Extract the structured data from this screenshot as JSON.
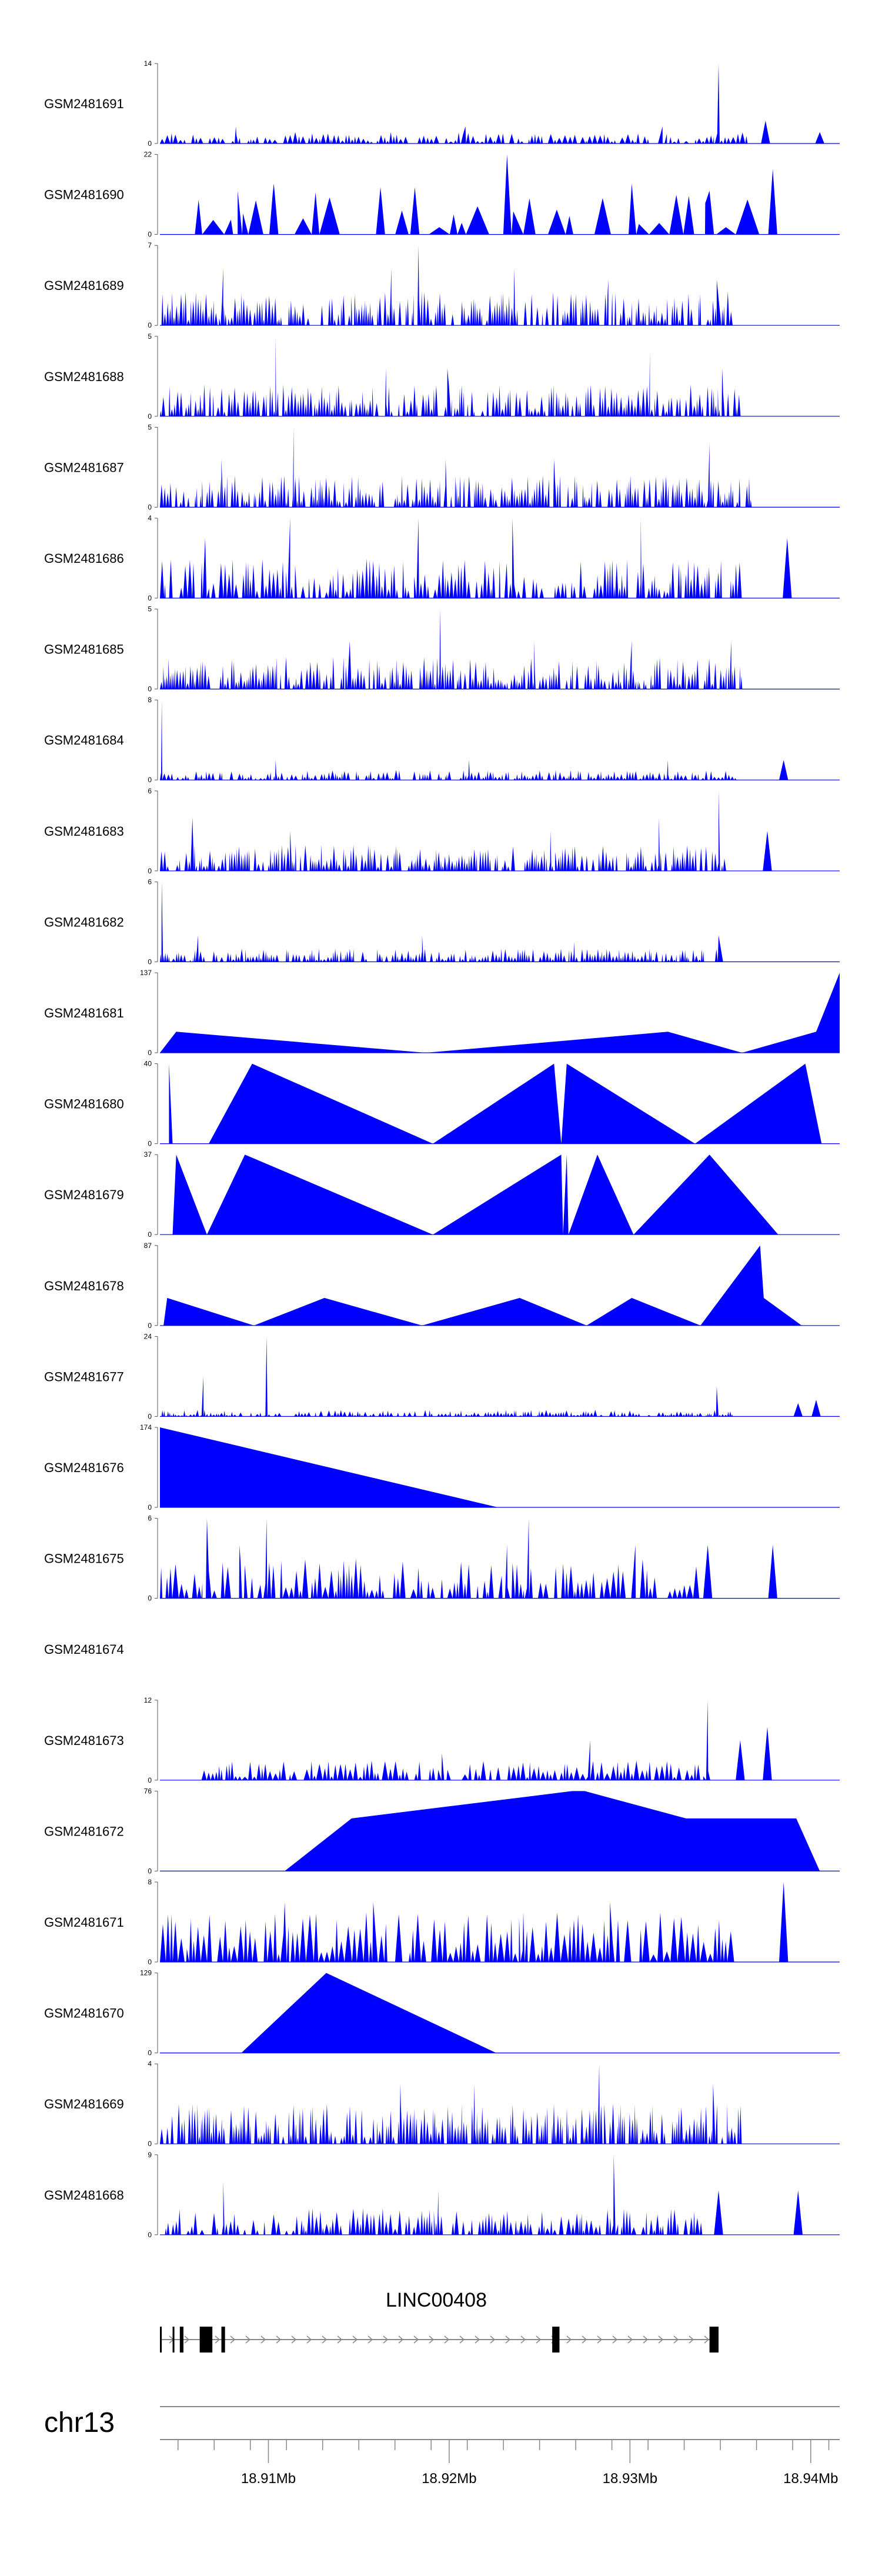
{
  "chart_data": {
    "type": "area",
    "title": "",
    "fill_color": "#0000ff",
    "x_unit": "Mb",
    "xlim": [
      18.904,
      18.9416
    ],
    "tracks": [
      {
        "name": "GSM2481691",
        "ymax": 14,
        "peaks": [
          [
            18.9349,
            14
          ],
          [
            18.9375,
            4
          ],
          [
            18.9318,
            3
          ],
          [
            18.9209,
            3
          ],
          [
            18.9082,
            3
          ],
          [
            18.9405,
            2
          ]
        ],
        "density": 0.8,
        "base": 2
      },
      {
        "name": "GSM2481690",
        "ymax": 22,
        "peaks": [
          [
            18.9232,
            22
          ],
          [
            18.9379,
            18
          ],
          [
            18.9103,
            14
          ],
          [
            18.9301,
            14
          ],
          [
            18.9162,
            13
          ],
          [
            18.9181,
            13
          ],
          [
            18.9344,
            12
          ],
          [
            18.9083,
            12
          ]
        ],
        "density": 0.2,
        "base": 12,
        "start": 18.9054
      },
      {
        "name": "GSM2481689",
        "ymax": 7,
        "peaks": [
          [
            18.9183,
            7
          ],
          [
            18.9075,
            5
          ],
          [
            18.9236,
            5
          ],
          [
            18.9348,
            4
          ],
          [
            18.9168,
            5
          ],
          [
            18.9288,
            4
          ]
        ],
        "density": 1.3,
        "base": 3
      },
      {
        "name": "GSM2481688",
        "ymax": 5,
        "peaks": [
          [
            18.9104,
            5
          ],
          [
            18.9311,
            4
          ],
          [
            18.9199,
            3
          ],
          [
            18.9351,
            3
          ],
          [
            18.9165,
            3
          ]
        ],
        "density": 1.2,
        "base": 2
      },
      {
        "name": "GSM2481687",
        "ymax": 5,
        "peaks": [
          [
            18.9114,
            5
          ],
          [
            18.9074,
            3
          ],
          [
            18.9258,
            3
          ],
          [
            18.9344,
            4
          ],
          [
            18.9198,
            3
          ]
        ],
        "density": 1.3,
        "base": 2
      },
      {
        "name": "GSM2481686",
        "ymax": 4,
        "peaks": [
          [
            18.9112,
            4
          ],
          [
            18.9183,
            4
          ],
          [
            18.9235,
            4
          ],
          [
            18.9306,
            4
          ],
          [
            18.9387,
            3
          ],
          [
            18.9065,
            3
          ]
        ],
        "density": 1.0,
        "base": 2
      },
      {
        "name": "GSM2481685",
        "ymax": 5,
        "peaks": [
          [
            18.9195,
            5
          ],
          [
            18.9145,
            3
          ],
          [
            18.9301,
            3
          ],
          [
            18.9247,
            3
          ],
          [
            18.9356,
            3
          ]
        ],
        "density": 1.3,
        "base": 2
      },
      {
        "name": "GSM2481684",
        "ymax": 8,
        "peaks": [
          [
            18.9041,
            8
          ],
          [
            18.9104,
            2
          ],
          [
            18.9211,
            2
          ],
          [
            18.9321,
            2
          ],
          [
            18.9385,
            2
          ]
        ],
        "density": 1.1,
        "base": 1
      },
      {
        "name": "GSM2481683",
        "ymax": 6,
        "peaks": [
          [
            18.9349,
            6
          ],
          [
            18.9316,
            4
          ],
          [
            18.9058,
            4
          ],
          [
            18.9112,
            3
          ],
          [
            18.9256,
            3
          ],
          [
            18.9376,
            3
          ]
        ],
        "density": 1.2,
        "base": 2
      },
      {
        "name": "GSM2481682",
        "ymax": 6,
        "peaks": [
          [
            18.9041,
            6
          ],
          [
            18.9061,
            2
          ],
          [
            18.9185,
            2
          ],
          [
            18.9349,
            2
          ],
          [
            18.9269,
            1.5
          ]
        ],
        "density": 1.2,
        "base": 1
      },
      {
        "name": "GSM2481681",
        "ymax": 137,
        "peaks": [
          [
            18.9049,
            36
          ],
          [
            18.9187,
            0
          ],
          [
            18.9321,
            36
          ],
          [
            18.9362,
            0
          ],
          [
            18.9403,
            36
          ],
          [
            18.9416,
            137
          ]
        ],
        "density": 0,
        "base": 0,
        "start": 18.904
      },
      {
        "name": "GSM2481680",
        "ymax": 40,
        "peaks": [
          [
            18.9045,
            40
          ],
          [
            18.9067,
            0
          ],
          [
            18.9091,
            40
          ],
          [
            18.9191,
            0
          ],
          [
            18.9258,
            40
          ],
          [
            18.9262,
            0
          ],
          [
            18.9265,
            40
          ],
          [
            18.9336,
            0
          ],
          [
            18.9397,
            40
          ],
          [
            18.9406,
            0
          ]
        ],
        "density": 0,
        "base": 0,
        "start": 18.9047
      },
      {
        "name": "GSM2481679",
        "ymax": 37,
        "peaks": [
          [
            18.9049,
            37
          ],
          [
            18.9066,
            0
          ],
          [
            18.9087,
            37
          ],
          [
            18.9191,
            0
          ],
          [
            18.9262,
            37
          ],
          [
            18.9263,
            0
          ],
          [
            18.9265,
            37
          ],
          [
            18.9266,
            0
          ],
          [
            18.9282,
            37
          ],
          [
            18.9302,
            0
          ],
          [
            18.9344,
            37
          ],
          [
            18.9382,
            0
          ]
        ],
        "density": 0,
        "base": 0,
        "start": 18.9047
      },
      {
        "name": "GSM2481678",
        "ymax": 87,
        "peaks": [
          [
            18.9044,
            30
          ],
          [
            18.9092,
            0
          ],
          [
            18.9131,
            30
          ],
          [
            18.9185,
            0
          ],
          [
            18.9239,
            30
          ],
          [
            18.9276,
            0
          ],
          [
            18.9301,
            30
          ],
          [
            18.9339,
            0
          ],
          [
            18.9372,
            87
          ],
          [
            18.9374,
            30
          ],
          [
            18.9395,
            0
          ]
        ],
        "density": 0,
        "base": 0,
        "start": 18.9042
      },
      {
        "name": "GSM2481677",
        "ymax": 24,
        "peaks": [
          [
            18.9099,
            24
          ],
          [
            18.9064,
            12
          ],
          [
            18.9348,
            9
          ],
          [
            18.9403,
            5
          ],
          [
            18.9393,
            4
          ]
        ],
        "density": 1.1,
        "base": 2
      },
      {
        "name": "GSM2481676",
        "ymax": 174,
        "peaks": [
          [
            18.904,
            174
          ],
          [
            18.9227,
            0
          ]
        ],
        "density": 0,
        "base": 0,
        "start": 18.904
      },
      {
        "name": "GSM2481675",
        "ymax": 6,
        "peaks": [
          [
            18.9066,
            6
          ],
          [
            18.9099,
            6
          ],
          [
            18.9244,
            6
          ],
          [
            18.9084,
            4
          ],
          [
            18.9303,
            4
          ],
          [
            18.9343,
            4
          ],
          [
            18.9379,
            4
          ],
          [
            18.9232,
            4
          ]
        ],
        "density": 0.7,
        "base": 3,
        "end": 18.9405
      },
      {
        "name": "GSM2481674",
        "ymax": 0,
        "peaks": [],
        "density": 0,
        "base": 0,
        "empty": true
      },
      {
        "name": "GSM2481673",
        "ymax": 12,
        "peaks": [
          [
            18.9343,
            12
          ],
          [
            18.9376,
            8
          ],
          [
            18.9361,
            6
          ],
          [
            18.9278,
            6
          ],
          [
            18.9196,
            4
          ]
        ],
        "density": 0.7,
        "base": 3,
        "start": 18.9063,
        "end": 18.9414
      },
      {
        "name": "GSM2481672",
        "ymax": 76,
        "peaks": [
          [
            18.9268,
            76
          ],
          [
            18.9275,
            76
          ],
          [
            18.9146,
            50
          ],
          [
            18.9331,
            50
          ],
          [
            18.9392,
            50
          ]
        ],
        "density": 0,
        "base": 0,
        "start": 18.9109,
        "end": 18.9405,
        "triangle": true
      },
      {
        "name": "GSM2481671",
        "ymax": 8,
        "peaks": [
          [
            18.9385,
            8
          ],
          [
            18.9109,
            6
          ],
          [
            18.9158,
            6
          ],
          [
            18.9289,
            6
          ],
          [
            18.9241,
            5
          ],
          [
            18.9057,
            4
          ]
        ],
        "density": 0.6,
        "base": 5
      },
      {
        "name": "GSM2481670",
        "ymax": 129,
        "peaks": [
          [
            18.9132,
            129
          ],
          [
            18.9226,
            0
          ]
        ],
        "density": 0,
        "base": 0,
        "start": 18.9085
      },
      {
        "name": "GSM2481669",
        "ymax": 4,
        "peaks": [
          [
            18.9283,
            4
          ],
          [
            18.9346,
            3
          ],
          [
            18.9214,
            3
          ],
          [
            18.9173,
            3
          ],
          [
            18.9058,
            2
          ]
        ],
        "density": 1.3,
        "base": 2
      },
      {
        "name": "GSM2481668",
        "ymax": 9,
        "peaks": [
          [
            18.9291,
            9
          ],
          [
            18.9075,
            6
          ],
          [
            18.9194,
            5
          ],
          [
            18.9349,
            5
          ],
          [
            18.9393,
            5
          ]
        ],
        "density": 0.9,
        "base": 3,
        "end": 18.9409
      }
    ],
    "gene": {
      "name": "LINC00408",
      "strand": "+",
      "start": 18.904,
      "end": 18.9349,
      "exons": [
        [
          18.904,
          18.9041
        ],
        [
          18.9047,
          18.9048
        ],
        [
          18.9051,
          18.9053
        ],
        [
          18.9062,
          18.9069
        ],
        [
          18.9074,
          18.9076
        ],
        [
          18.9257,
          18.9261
        ],
        [
          18.9344,
          18.9349
        ]
      ]
    },
    "axis": {
      "chromosome": "chr13",
      "ticks": [
        18.905,
        18.907,
        18.909,
        18.911,
        18.913,
        18.915,
        18.917,
        18.919,
        18.921,
        18.923,
        18.925,
        18.927,
        18.929,
        18.931,
        18.933,
        18.935,
        18.937,
        18.939,
        18.941
      ],
      "labeled_ticks": [
        {
          "value": 18.91,
          "label": "18.91Mb"
        },
        {
          "value": 18.92,
          "label": "18.92Mb"
        },
        {
          "value": 18.93,
          "label": "18.93Mb"
        },
        {
          "value": 18.94,
          "label": "18.94Mb"
        }
      ]
    }
  }
}
